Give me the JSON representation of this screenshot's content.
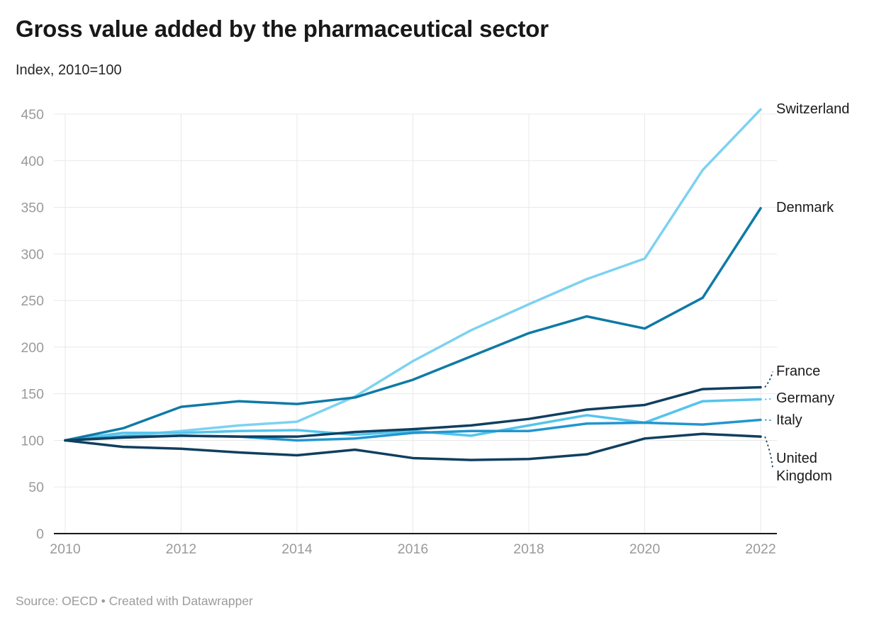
{
  "chart_data": {
    "type": "line",
    "title": "Gross value added by the pharmaceutical sector",
    "subtitle": "Index, 2010=100",
    "source_line": "Source: OECD • Created with Datawrapper",
    "x": [
      2010,
      2011,
      2012,
      2013,
      2014,
      2015,
      2016,
      2017,
      2018,
      2019,
      2020,
      2021,
      2022
    ],
    "xticks": [
      2010,
      2012,
      2014,
      2016,
      2018,
      2020,
      2022
    ],
    "yticks": [
      0,
      50,
      100,
      150,
      200,
      250,
      300,
      350,
      400,
      450
    ],
    "ylim": [
      0,
      450
    ],
    "grid": true,
    "legend_position": "right-edge-direct-labels",
    "axis_color": "#1a1a1a",
    "grid_color": "#e8e8e8",
    "tick_label_color": "#9a9a9a",
    "series": [
      {
        "name": "Switzerland",
        "color": "#7dd2f1",
        "values": [
          100,
          105,
          110,
          116,
          120,
          147,
          185,
          218,
          246,
          273,
          295,
          390,
          455
        ],
        "label_dy": 0,
        "connector": false
      },
      {
        "name": "Denmark",
        "color": "#0e7aa6",
        "values": [
          100,
          113,
          136,
          142,
          139,
          146,
          165,
          190,
          215,
          233,
          220,
          253,
          349
        ],
        "label_dy": 0,
        "connector": false
      },
      {
        "name": "France",
        "color": "#103f5f",
        "values": [
          100,
          103,
          105,
          104,
          104,
          109,
          112,
          116,
          123,
          133,
          138,
          155,
          157
        ],
        "label_dy": -22,
        "connector": true
      },
      {
        "name": "Germany",
        "color": "#55c4ec",
        "values": [
          100,
          108,
          108,
          110,
          111,
          106,
          110,
          105,
          116,
          127,
          119,
          142,
          144
        ],
        "label_dy": -1,
        "connector": true
      },
      {
        "name": "Italy",
        "color": "#2196cf",
        "values": [
          100,
          104,
          105,
          104,
          100,
          102,
          108,
          110,
          110,
          118,
          119,
          117,
          122
        ],
        "label_dy": 1,
        "connector": true
      },
      {
        "name": "United Kingdom",
        "color": "#103f5f",
        "values": [
          100,
          93,
          91,
          87,
          84,
          90,
          81,
          79,
          80,
          85,
          102,
          107,
          104
        ],
        "label_dy": 44,
        "connector": true
      }
    ]
  }
}
